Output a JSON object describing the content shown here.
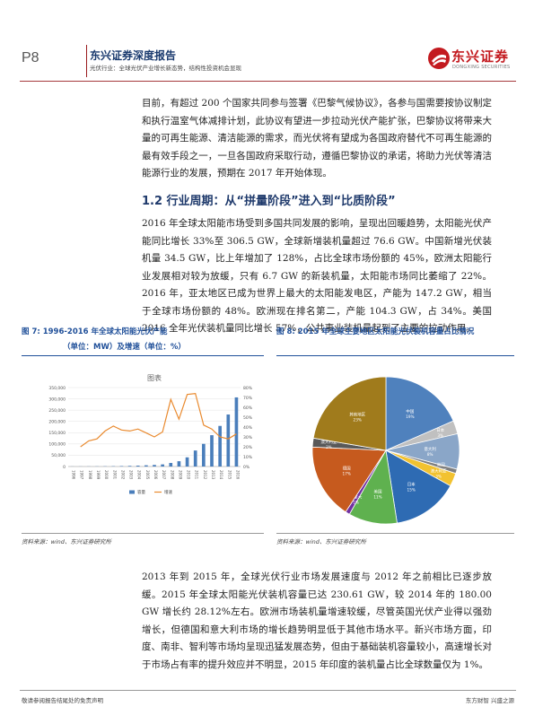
{
  "header": {
    "page_no": "P8",
    "title": "东兴证券深度报告",
    "subtitle": "光伏行业：全球光伏产业增长新态势，结构性投资机会显现",
    "logo_name": "东兴证券",
    "logo_en": "DONGXING SECURITIES"
  },
  "body": {
    "para1": "目前，有超过 200 个国家共同参与签署《巴黎气候协议》，各参与国需要按协议制定和执行温室气体减排计划，此协议有望进一步拉动光伏产能扩张，巴黎协议将带来大量的可再生能源、清洁能源的需求，而光伏将有望成为各国政府替代不可再生能源的最有效手段之一，一旦各国政府采取行动，遵循巴黎协议的承诺，将助力光伏等清洁能源行业的发展，预期在 2017 年开始体现。",
    "section_heading": "1.2 行业周期：从“拼量阶段”进入到“比质阶段”",
    "para2": "2016 年全球太阳能市场受到多国共同发展的影响，呈现出回暖趋势，太阳能光伏产能同比增长 33%至 306.5 GW，全球新增装机量超过 76.6 GW。中国新增光伏装机量 34.5 GW，比上年增加了 128%，占比全球市场份额的 45%，欧洲太阳能行业发展相对较为放缓，只有 6.7 GW 的新装机量，太阳能市场同比萎缩了 22%。2016 年，亚太地区已成为世界上最大的太阳能发电区，产能为 147.2 GW，相当于全球市场份额的 48%。欧洲现在排名第二，产能 104.3 GW，占 34%。美国 2016 全年光伏装机量同比增长 57%，公共事业装机量起到了主要的拉动作用。",
    "para3": "2013 年到 2015 年，全球光伏行业市场发展速度与 2012 年之前相比已逐步放缓。2015 年全球太阳能光伏装机容量已达 230.61 GW，较 2014 年的 180.00 GW 增长约 28.12%左右。欧洲市场装机量增速较缓，尽管英国光伏产业得以强劲增长，但德国和意大利市场的增长趋势明显低于其他市场水平。新兴市场方面，印度、南非、智利等市场均呈现迅猛发展态势，但由于基础装机容量较小，高速增长对于市场占有率的提升效应并不明显，2015 年印度的装机量占比全球数量仅为 1%。"
  },
  "fig7": {
    "caption": "图 7: 1996-2016 年全球太阳能光伏产能",
    "caption2": "（单位：MW）及增速（单位：%）",
    "source": "资料来源：wind、东兴证券研究所"
  },
  "fig8": {
    "caption": "图 8: 2015 年全球主要地区太阳能光伏装机容量占比情况",
    "source": "资料来源：wind、东兴证券研究所"
  },
  "footer": {
    "left": "敬请参阅报告结尾处的免责声明",
    "right": "东方财智 兴盛之源"
  },
  "chart_data": [
    {
      "type": "bar",
      "title": "图表",
      "categories": [
        "1996",
        "1997",
        "1998",
        "1999",
        "2000",
        "2001",
        "2002",
        "2003",
        "2004",
        "2005",
        "2006",
        "2007",
        "2008",
        "2009",
        "2010",
        "2011",
        "2012",
        "2013",
        "2014",
        "2015",
        "2016"
      ],
      "series": [
        {
          "name": "容量",
          "type": "bar",
          "axis": "left",
          "color": "#4a7ebb",
          "values": [
            310,
            395,
            500,
            670,
            940,
            1330,
            2040,
            2830,
            4000,
            5400,
            7000,
            9400,
            15800,
            23500,
            40700,
            71000,
            100500,
            138900,
            180000,
            230600,
            306500
          ]
        },
        {
          "name": "增速",
          "type": "line",
          "axis": "right",
          "color": "#e98a2f",
          "values": [
            null,
            20,
            26,
            28,
            36,
            41,
            37,
            36,
            38,
            34,
            30,
            35,
            68,
            48,
            73,
            74,
            42,
            38,
            30,
            28,
            33
          ]
        }
      ],
      "ylim_left": [
        0,
        350000
      ],
      "yticks_left": [
        "0",
        "50,000",
        "100,000",
        "150,000",
        "200,000",
        "250,000",
        "300,000",
        "350,000"
      ],
      "ylim_right": [
        0,
        80
      ],
      "yticks_right": [
        "0%",
        "10%",
        "20%",
        "30%",
        "40%",
        "50%",
        "60%",
        "70%",
        "80%"
      ],
      "legend": "bottom"
    },
    {
      "type": "pie",
      "slices": [
        {
          "label": "中国",
          "pct": "19%",
          "value": 19,
          "color": "#4f81bd"
        },
        {
          "label": "日本",
          "pct": "3%",
          "value": 3,
          "color": "#c0c0c0"
        },
        {
          "label": "意大利",
          "pct": "8%",
          "value": 8,
          "color": "#8aa6c8"
        },
        {
          "label": "美国",
          "pct": "",
          "value": 1,
          "color": "#7f7f7f"
        },
        {
          "label": "澳大利亚",
          "pct": "3%",
          "value": 3,
          "color": "#f2c230"
        },
        {
          "label": "日本",
          "pct": "15%",
          "value": 15,
          "color": "#2e6bb3"
        },
        {
          "label": "美国",
          "pct": "11%",
          "value": 11,
          "color": "#5fb14f"
        },
        {
          "label": "加拿大",
          "pct": "1%",
          "value": 1,
          "color": "#7030a0"
        },
        {
          "label": "德国",
          "pct": "17%",
          "value": 17,
          "color": "#c65a1e"
        },
        {
          "label": "澳大利亚",
          "pct": "2%",
          "value": 2,
          "color": "#595959"
        },
        {
          "label": "其他地区",
          "pct": "23%",
          "value": 23,
          "color": "#a07b1c"
        }
      ]
    }
  ]
}
